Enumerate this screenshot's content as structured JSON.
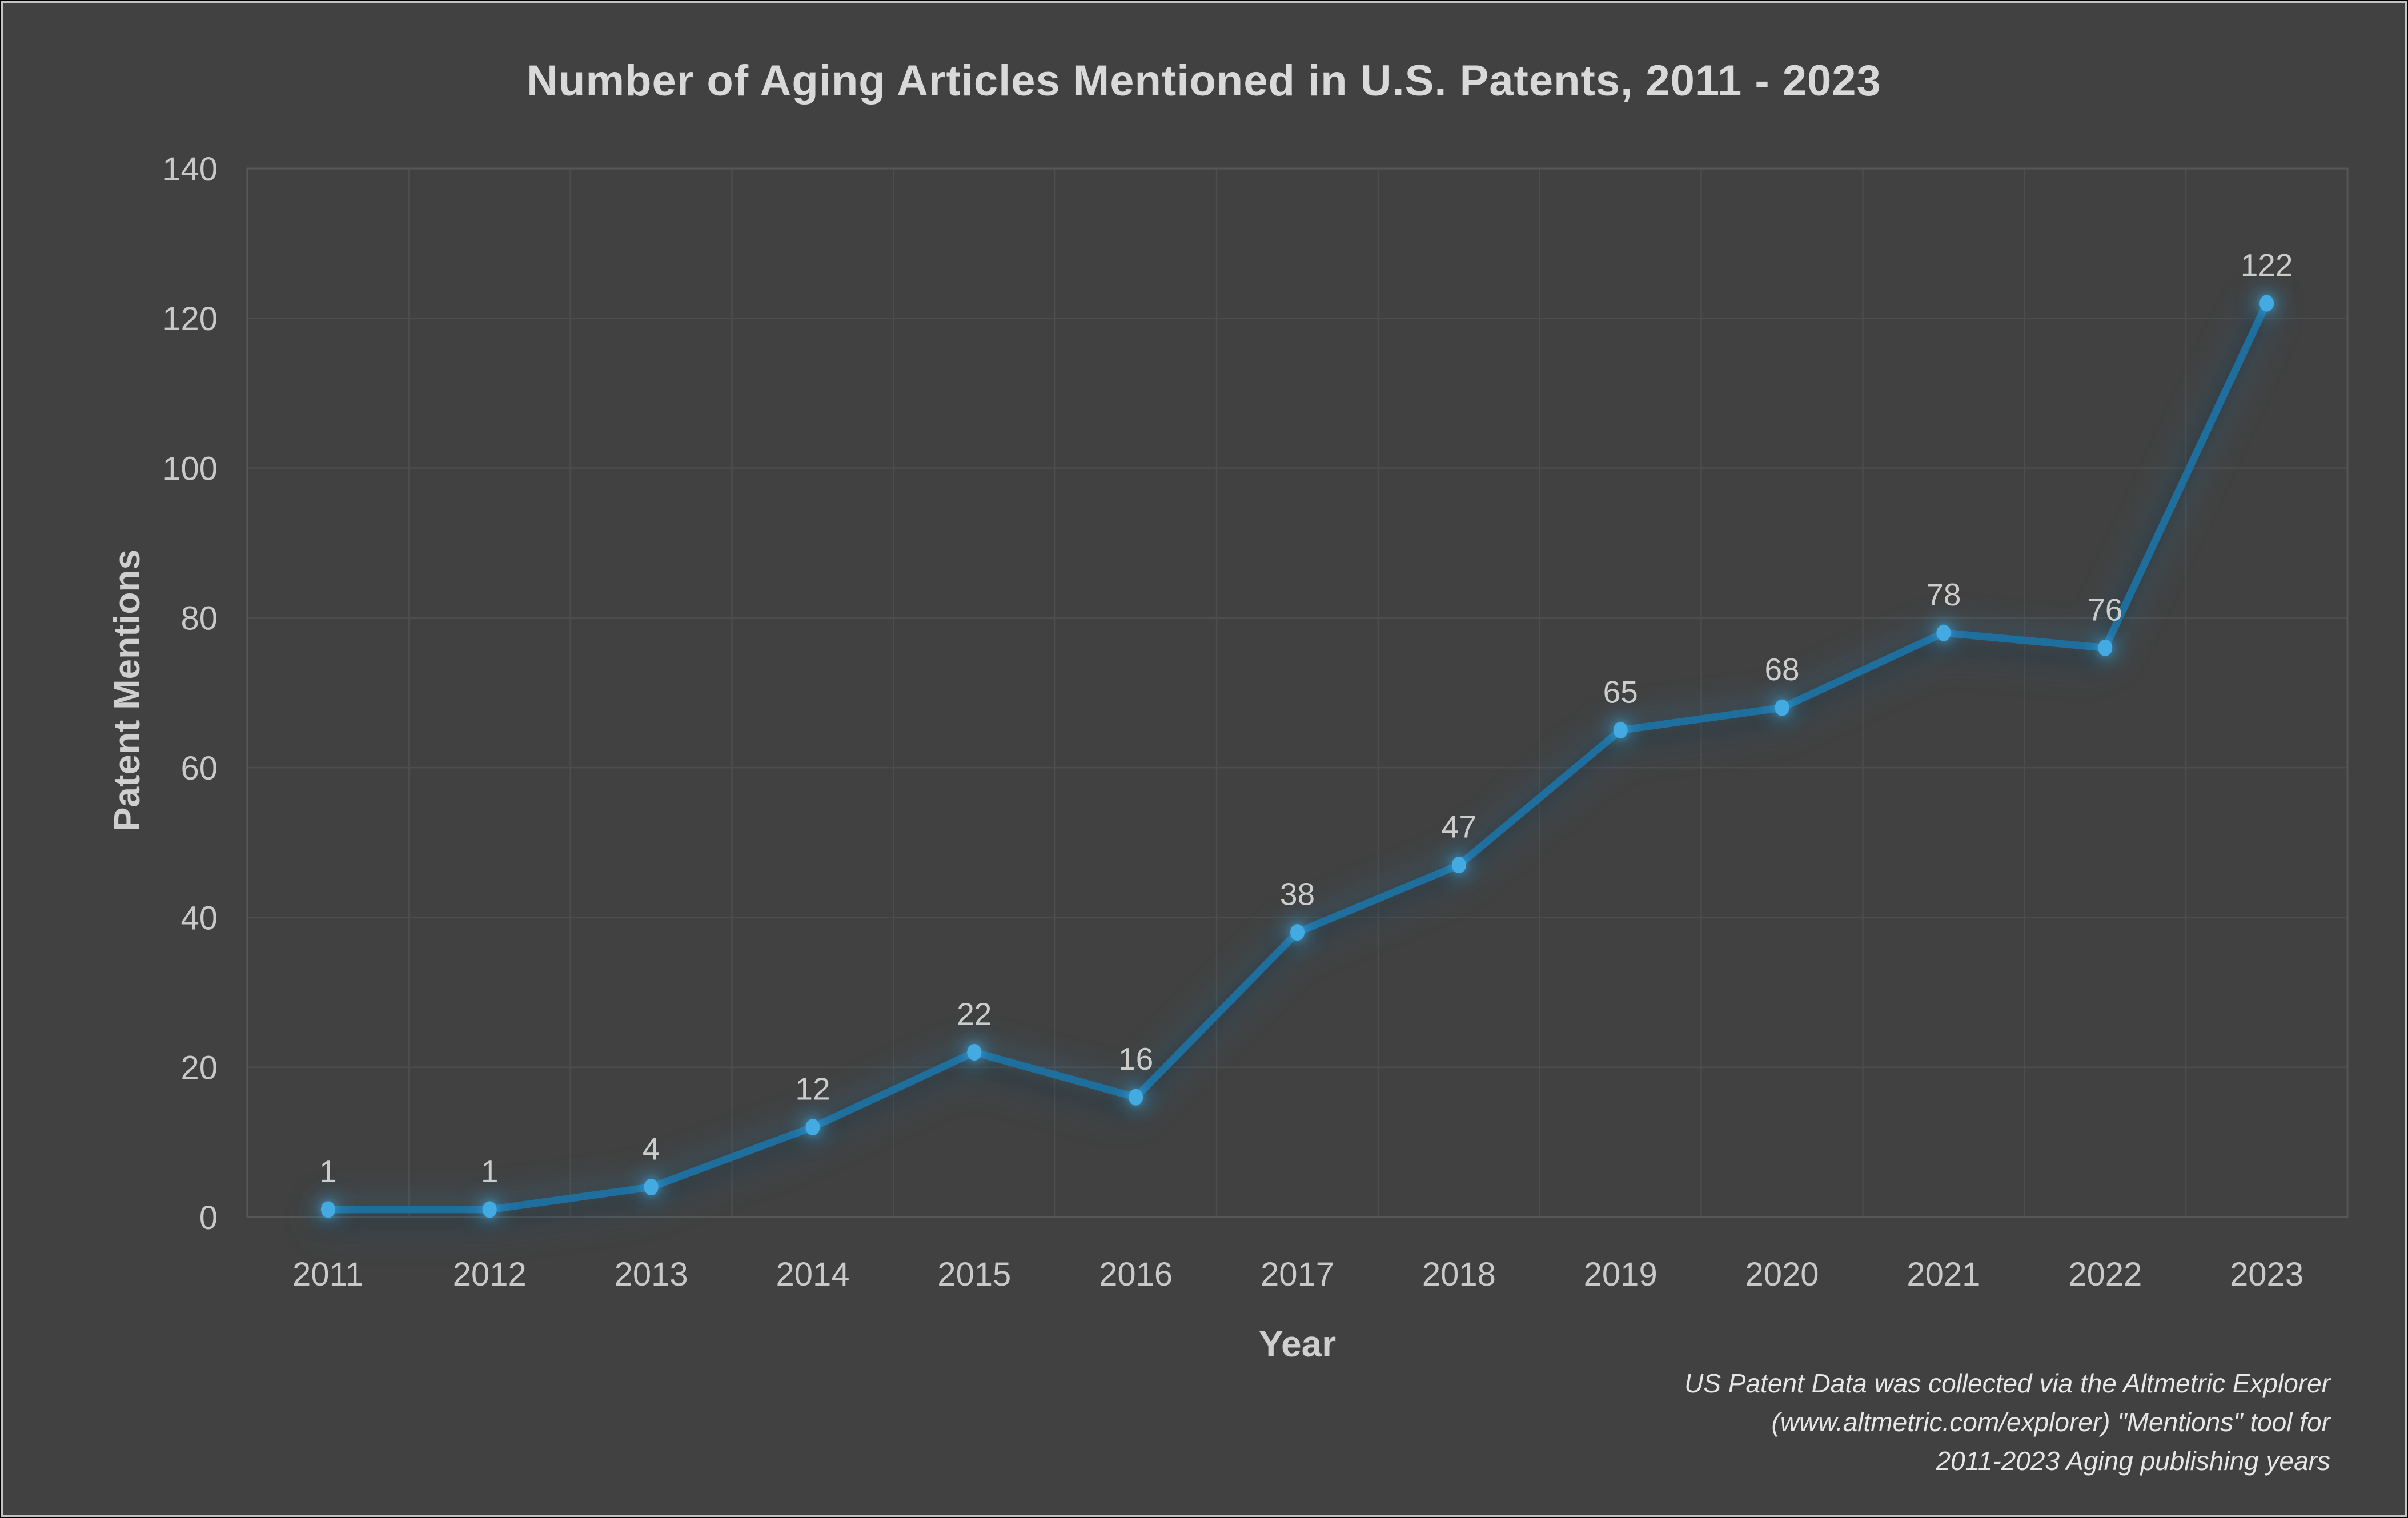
{
  "chart_data": {
    "type": "line",
    "title": "Number of Aging Articles Mentioned in U.S. Patents, 2011 - 2023",
    "x": [
      "2011",
      "2012",
      "2013",
      "2014",
      "2015",
      "2016",
      "2017",
      "2018",
      "2019",
      "2020",
      "2021",
      "2022",
      "2023"
    ],
    "series": [
      {
        "name": "Patent Mentions",
        "values": [
          1,
          1,
          4,
          12,
          22,
          16,
          38,
          47,
          65,
          68,
          78,
          76,
          122
        ]
      }
    ],
    "xlabel": "Year",
    "ylabel": "Patent Mentions",
    "ylim": [
      0,
      140
    ],
    "ytick_step": 20,
    "grid": true,
    "legend_position": "none",
    "data_labels": true,
    "colors": {
      "line": "#1f6f9e",
      "marker": "#44abe2",
      "glow": "#38a6e0",
      "background": "#414141",
      "gridline": "#4d4d4d",
      "text": "#c9c9c9"
    }
  },
  "footnote": {
    "lines": [
      "US Patent Data was collected via the Altmetric Explorer",
      "(www.altmetric.com/explorer) \"Mentions\" tool for",
      "2011-2023 Aging publishing years"
    ]
  }
}
